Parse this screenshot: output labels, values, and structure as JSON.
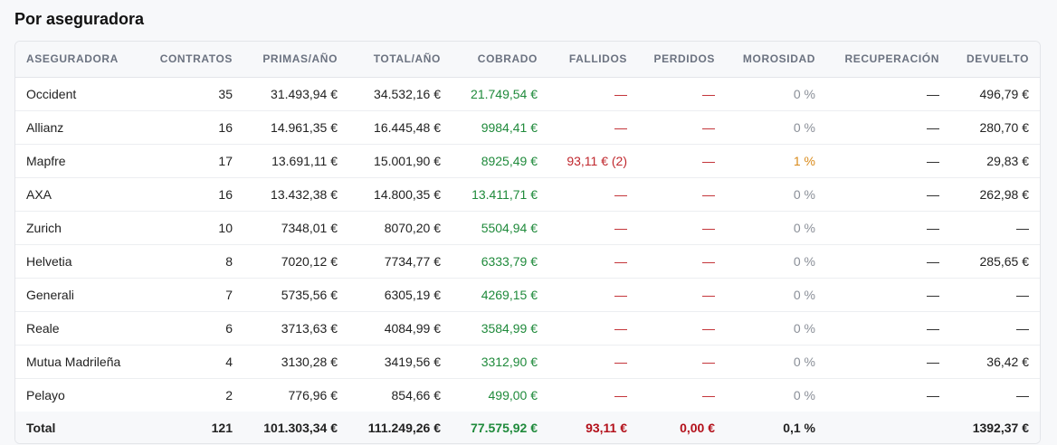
{
  "section": {
    "title": "Por aseguradora"
  },
  "colors": {
    "green": "#1f8a3b",
    "red": "#c0272d",
    "orange": "#d98a1a",
    "muted": "#8a8f98"
  },
  "table": {
    "headers": [
      "ASEGURADORA",
      "CONTRATOS",
      "PRIMAS/AÑO",
      "TOTAL/AÑO",
      "COBRADO",
      "FALLIDOS",
      "PERDIDOS",
      "MOROSIDAD",
      "RECUPERACIÓN",
      "DEVUELTO"
    ],
    "rows": [
      [
        "Occident",
        "35",
        "31.493,94 €",
        "34.532,16 €",
        "21.749,54 €",
        "—",
        "—",
        "0 %",
        "—",
        "496,79 €"
      ],
      [
        "Allianz",
        "16",
        "14.961,35 €",
        "16.445,48 €",
        "9984,41 €",
        "—",
        "—",
        "0 %",
        "—",
        "280,70 €"
      ],
      [
        "Mapfre",
        "17",
        "13.691,11 €",
        "15.001,90 €",
        "8925,49 €",
        "93,11 € (2)",
        "—",
        "1 %",
        "—",
        "29,83 €"
      ],
      [
        "AXA",
        "16",
        "13.432,38 €",
        "14.800,35 €",
        "13.411,71 €",
        "—",
        "—",
        "0 %",
        "—",
        "262,98 €"
      ],
      [
        "Zurich",
        "10",
        "7348,01 €",
        "8070,20 €",
        "5504,94 €",
        "—",
        "—",
        "0 %",
        "—",
        "—"
      ],
      [
        "Helvetia",
        "8",
        "7020,12 €",
        "7734,77 €",
        "6333,79 €",
        "—",
        "—",
        "0 %",
        "—",
        "285,65 €"
      ],
      [
        "Generali",
        "7",
        "5735,56 €",
        "6305,19 €",
        "4269,15 €",
        "—",
        "—",
        "0 %",
        "—",
        "—"
      ],
      [
        "Reale",
        "6",
        "3713,63 €",
        "4084,99 €",
        "3584,99 €",
        "—",
        "—",
        "0 %",
        "—",
        "—"
      ],
      [
        "Mutua Madrileña",
        "4",
        "3130,28 €",
        "3419,56 €",
        "3312,90 €",
        "—",
        "—",
        "0 %",
        "—",
        "36,42 €"
      ],
      [
        "Pelayo",
        "2",
        "776,96 €",
        "854,66 €",
        "499,00 €",
        "—",
        "—",
        "0 %",
        "—",
        "—"
      ]
    ],
    "totals": [
      "Total",
      "121",
      "101.303,34 €",
      "111.249,26 €",
      "77.575,92 €",
      "93,11 €",
      "0,00 €",
      "0,1 %",
      "",
      "1392,37 €"
    ]
  }
}
